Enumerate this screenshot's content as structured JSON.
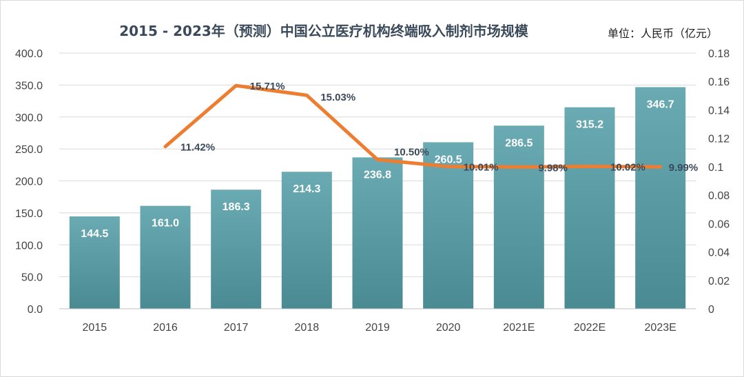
{
  "chart_data": {
    "type": "bar",
    "title": "2015 - 2023年（预测）中国公立医疗机构终端吸入制剂市场规模",
    "unit_label": "单位：人民币（亿元）",
    "categories": [
      "2015",
      "2016",
      "2017",
      "2018",
      "2019",
      "2020",
      "2021E",
      "2022E",
      "2023E"
    ],
    "series": [
      {
        "type": "bar",
        "axis": "left",
        "values": [
          144.5,
          161.0,
          186.3,
          214.3,
          236.8,
          260.5,
          286.5,
          315.2,
          346.7
        ],
        "labels": [
          "144.5",
          "161.0",
          "186.3",
          "214.3",
          "236.8",
          "260.5",
          "286.5",
          "315.2",
          "346.7"
        ],
        "color": "#4f9aa3"
      },
      {
        "type": "line",
        "axis": "right",
        "values": [
          null,
          0.1142,
          0.1571,
          0.1503,
          0.105,
          0.1001,
          0.0998,
          0.1002,
          0.0999
        ],
        "labels": [
          "",
          "11.42%",
          "15.71%",
          "15.03%",
          "10.50%",
          "10.01%",
          "9.98%",
          "10.02%",
          "9.99%"
        ],
        "color": "#ed7d31"
      }
    ],
    "y_left": {
      "range": [
        0,
        400
      ],
      "ticks": [
        "0.0",
        "50.0",
        "100.0",
        "150.0",
        "200.0",
        "250.0",
        "300.0",
        "350.0",
        "400.0"
      ]
    },
    "y_right": {
      "range": [
        0,
        0.18
      ],
      "ticks": [
        "0",
        "0.02",
        "0.04",
        "0.06",
        "0.08",
        "0.1",
        "0.12",
        "0.14",
        "0.16",
        "0.18"
      ]
    },
    "grid": true,
    "legend": "none"
  }
}
